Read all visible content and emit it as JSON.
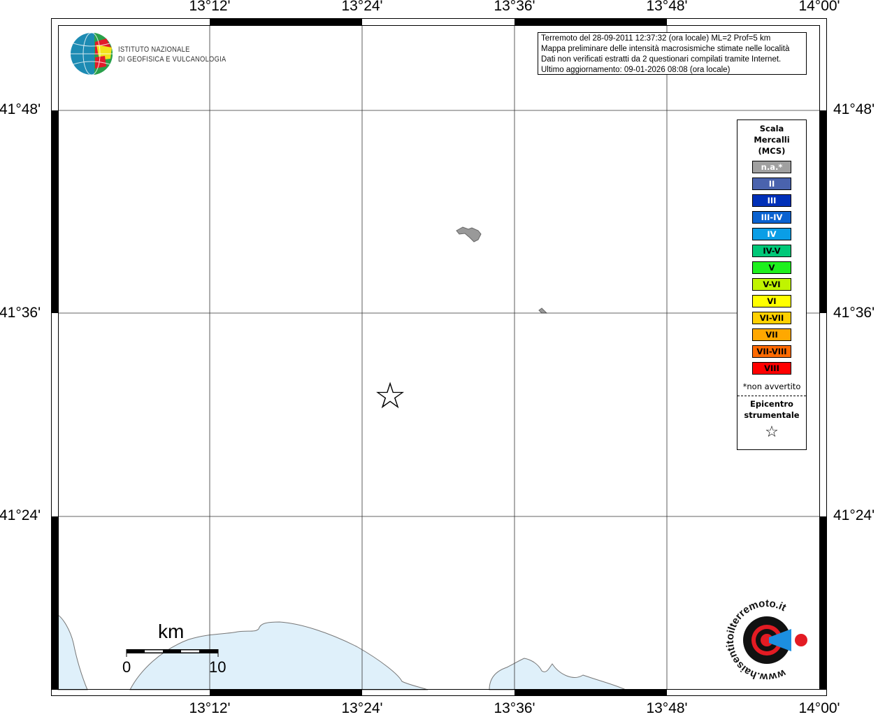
{
  "map": {
    "lon_labels": [
      "13°12'",
      "13°24'",
      "13°36'",
      "13°48'",
      "14°00'"
    ],
    "lat_labels": [
      "41°48'",
      "41°36'",
      "41°24'"
    ],
    "sea_color": "#dff0fa",
    "epicenter_icon": "star-outline-icon"
  },
  "info": {
    "line1": "Terremoto del 28-09-2011 12:37:32 (ora locale) ML=2 Prof=5 km",
    "line2": "Mappa preliminare delle intensità macrosismiche stimate nelle località",
    "line3": "Dati non verificati estratti da 2 questionari compilati tramite Internet.",
    "line4": "Ultimo aggiornamento: 09-01-2026 08:08 (ora locale)"
  },
  "legend": {
    "title": [
      "Scala",
      "Mercalli",
      "(MCS)"
    ],
    "classes": [
      {
        "label": "n.a.*",
        "color": "#a0a0a0",
        "text": "#ffffff"
      },
      {
        "label": "II",
        "color": "#4a63ad",
        "text": "#ffffff"
      },
      {
        "label": "III",
        "color": "#0030b8",
        "text": "#ffffff"
      },
      {
        "label": "III-IV",
        "color": "#0a62d0",
        "text": "#ffffff"
      },
      {
        "label": "IV",
        "color": "#0a9ee6",
        "text": "#ffffff"
      },
      {
        "label": "IV-V",
        "color": "#00c878",
        "text": "#000000"
      },
      {
        "label": "V",
        "color": "#1ef01e",
        "text": "#000000"
      },
      {
        "label": "V-VI",
        "color": "#c0f400",
        "text": "#000000"
      },
      {
        "label": "VI",
        "color": "#ffff00",
        "text": "#000000"
      },
      {
        "label": "VI-VII",
        "color": "#ffd000",
        "text": "#000000"
      },
      {
        "label": "VII",
        "color": "#ffa800",
        "text": "#000000"
      },
      {
        "label": "VII-VIII",
        "color": "#ff6a00",
        "text": "#000000"
      },
      {
        "label": "VIII",
        "color": "#ff0000",
        "text": "#000000"
      }
    ],
    "note": "*non avvertito",
    "epicenter": [
      "Epicentro",
      "strumentale"
    ],
    "star": "☆"
  },
  "scalebar": {
    "unit": "km",
    "start": "0",
    "end": "10"
  },
  "logos": {
    "ingv_line1": "ISTITUTO NAZIONALE",
    "ingv_line2": "DI GEOFISICA E VULCANOLOGIA",
    "hst": "www.haisentitoilterremoto.it"
  }
}
